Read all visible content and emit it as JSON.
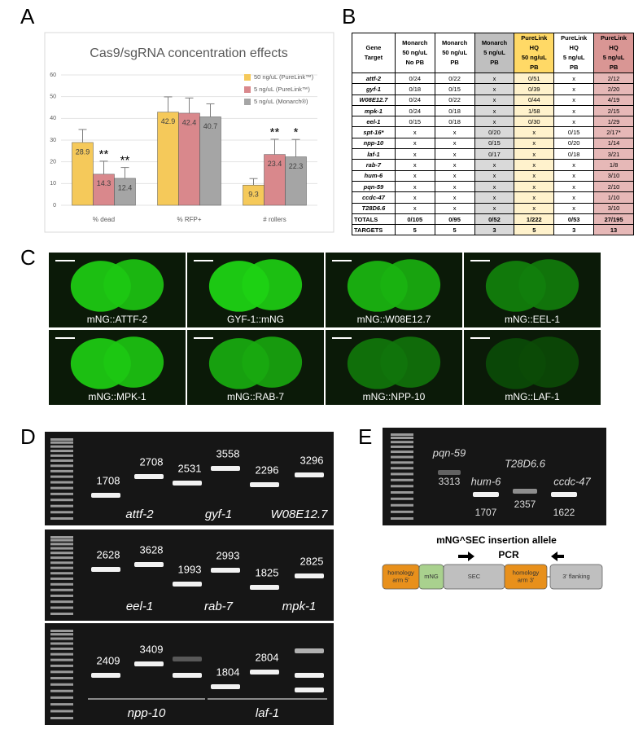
{
  "panel_labels": [
    "A",
    "B",
    "C",
    "D",
    "E"
  ],
  "chart_data": {
    "type": "bar",
    "title": "Cas9/sgRNA concentration effects",
    "categories": [
      "% dead",
      "% RFP+",
      "# rollers"
    ],
    "series": [
      {
        "name": "50 ng/uL (PureLink™)",
        "color": "#f5c95a",
        "values": [
          28.9,
          42.9,
          9.3
        ],
        "errors": [
          6,
          7,
          3
        ],
        "annotations": [
          null,
          null,
          null
        ]
      },
      {
        "name": "5 ng/uL (PureLink™)",
        "color": "#d9888c",
        "values": [
          14.3,
          42.4,
          23.4
        ],
        "errors": [
          6,
          7,
          7
        ],
        "annotations": [
          "**",
          null,
          "**"
        ]
      },
      {
        "name": "5 ng/uL (Monarch®)",
        "color": "#a5a5a5",
        "values": [
          12.4,
          40.7,
          22.3
        ],
        "errors": [
          5,
          6,
          8
        ],
        "annotations": [
          "**",
          null,
          "*"
        ]
      }
    ],
    "ylim": [
      0,
      60
    ],
    "yticks": [
      0,
      10,
      20,
      30,
      40,
      50,
      60
    ],
    "grid": true,
    "legend": "upper right"
  },
  "table": {
    "header": [
      [
        "Gene",
        "Target"
      ],
      [
        "Monarch",
        "50 ng/uL",
        "No PB"
      ],
      [
        "Monarch",
        "50 ng/uL",
        "PB"
      ],
      [
        "Monarch",
        "5 ng/uL",
        "PB"
      ],
      [
        "PureLink HQ",
        "50 ng/uL",
        "PB"
      ],
      [
        "PureLink HQ",
        "5 ng/uL",
        "PB"
      ],
      [
        "PureLink HQ",
        "5 ng/uL",
        "PB"
      ]
    ],
    "rows": [
      [
        "attf-2",
        "0/24",
        "0/22",
        "x",
        "0/51",
        "x",
        "2/12"
      ],
      [
        "gyf-1",
        "0/18",
        "0/15",
        "x",
        "0/39",
        "x",
        "2/20"
      ],
      [
        "W08E12.7",
        "0/24",
        "0/22",
        "x",
        "0/44",
        "x",
        "4/19"
      ],
      [
        "mpk-1",
        "0/24",
        "0/18",
        "x",
        "1/58",
        "x",
        "2/15"
      ],
      [
        "eel-1",
        "0/15",
        "0/18",
        "x",
        "0/30",
        "x",
        "1/29"
      ],
      [
        "spt-16*",
        "x",
        "x",
        "0/20",
        "x",
        "0/15",
        "2/17*"
      ],
      [
        "npp-10",
        "x",
        "x",
        "0/15",
        "x",
        "0/20",
        "1/14"
      ],
      [
        "laf-1",
        "x",
        "x",
        "0/17",
        "x",
        "0/18",
        "3/21"
      ],
      [
        "rab-7",
        "x",
        "x",
        "x",
        "x",
        "x",
        "1/8"
      ],
      [
        "hum-6",
        "x",
        "x",
        "x",
        "x",
        "x",
        "3/10"
      ],
      [
        "pqn-59",
        "x",
        "x",
        "x",
        "x",
        "x",
        "2/10"
      ],
      [
        "ccdc-47",
        "x",
        "x",
        "x",
        "x",
        "x",
        "1/10"
      ],
      [
        "T28D6.6",
        "x",
        "x",
        "x",
        "x",
        "x",
        "3/10"
      ]
    ],
    "summary": [
      [
        "TOTALS",
        "0/105",
        "0/95",
        "0/52",
        "1/222",
        "0/53",
        "27/195"
      ],
      [
        "TARGETS",
        "5",
        "5",
        "3",
        "5",
        "3",
        "13"
      ]
    ]
  },
  "images": [
    "mNG::ATTF-2",
    "GYF-1::mNG",
    "mNG::W08E12.7",
    "mNG::EEL-1",
    "mNG::MPK-1",
    "mNG::RAB-7",
    "mNG::NPP-10",
    "mNG::LAF-1"
  ],
  "gel_d": [
    {
      "sizes": [
        1708,
        2708,
        2531,
        3558,
        2296,
        3296
      ],
      "genes": [
        "attf-2",
        "gyf-1",
        "W08E12.7"
      ]
    },
    {
      "sizes": [
        2628,
        3628,
        1993,
        2993,
        1825,
        2825
      ],
      "genes": [
        "eel-1",
        "rab-7",
        "mpk-1"
      ]
    },
    {
      "sizes": [
        2409,
        3409,
        null,
        1804,
        2804,
        null
      ],
      "genes": [
        "npp-10",
        "laf-1"
      ]
    }
  ],
  "gel_e": {
    "genes": [
      "pqn-59",
      "hum-6",
      "T28D6.6",
      "ccdc-47"
    ],
    "sizes": [
      3313,
      1707,
      2357,
      1622
    ]
  },
  "diagram": {
    "title": "mNG^SEC insertion allele",
    "pcr": "PCR",
    "parts": [
      [
        "homology",
        "arm 5'"
      ],
      [
        "mNG"
      ],
      [
        "SEC"
      ],
      [
        "homology",
        "arm 3'"
      ],
      [
        "3' flanking"
      ]
    ]
  }
}
